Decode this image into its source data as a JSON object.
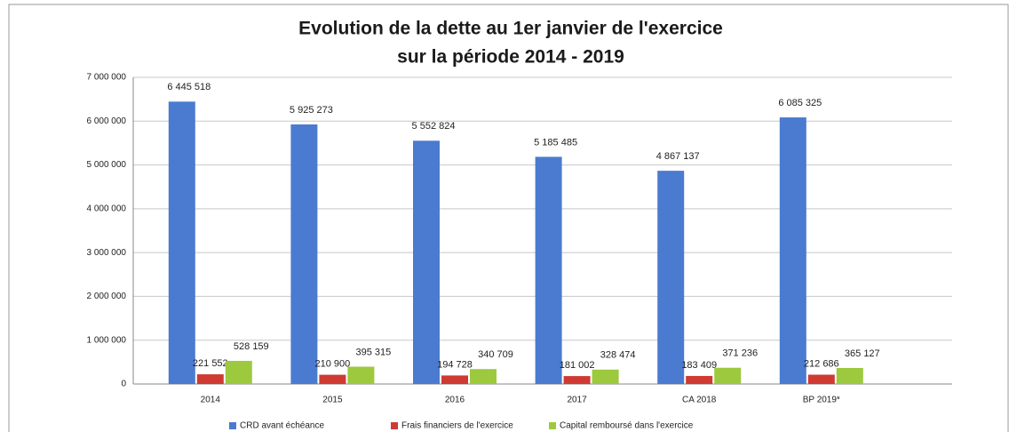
{
  "chart_data": {
    "type": "bar",
    "title": "Evolution de la dette au 1er janvier de l'exercice",
    "subtitle": "sur la période 2014 - 2019",
    "categories": [
      "2014",
      "2015",
      "2016",
      "2017",
      "CA 2018",
      "BP 2019*"
    ],
    "series": [
      {
        "name": "CRD avant échéance",
        "color": "#4a7bd0",
        "values": [
          6445518,
          5925273,
          5552824,
          5185485,
          4867137,
          6085325
        ],
        "value_labels": [
          "6 445 518",
          "5 925 273",
          "5 552 824",
          "5 185 485",
          "4 867 137",
          "6 085 325"
        ]
      },
      {
        "name": "Frais financiers de l'exercice",
        "color": "#cf3a32",
        "values": [
          221552,
          210900,
          194728,
          181002,
          183409,
          212686
        ],
        "value_labels": [
          "221 552",
          "210 900",
          "194 728",
          "181 002",
          "183 409",
          "212 686"
        ]
      },
      {
        "name": "Capital remboursé dans l'exercice",
        "color": "#9cc93e",
        "values": [
          528159,
          395315,
          340709,
          328474,
          371236,
          365127
        ],
        "value_labels": [
          "528 159",
          "395 315",
          "340 709",
          "328 474",
          "371 236",
          "365 127"
        ]
      }
    ],
    "ylim": [
      0,
      7000000
    ],
    "yticks": [
      0,
      {
        "value": 1000000,
        "label": "1 000 000"
      },
      {
        "value": 2000000,
        "label": "2 000 000"
      },
      {
        "value": 3000000,
        "label": "3 000 000"
      },
      {
        "value": 4000000,
        "label": "4 000 000"
      },
      {
        "value": 5000000,
        "label": "5 000 000"
      },
      {
        "value": 6000000,
        "label": "6 000 000"
      },
      {
        "value": 7000000,
        "label": "7 000 000"
      }
    ],
    "grid": true,
    "legend": "bottom"
  }
}
